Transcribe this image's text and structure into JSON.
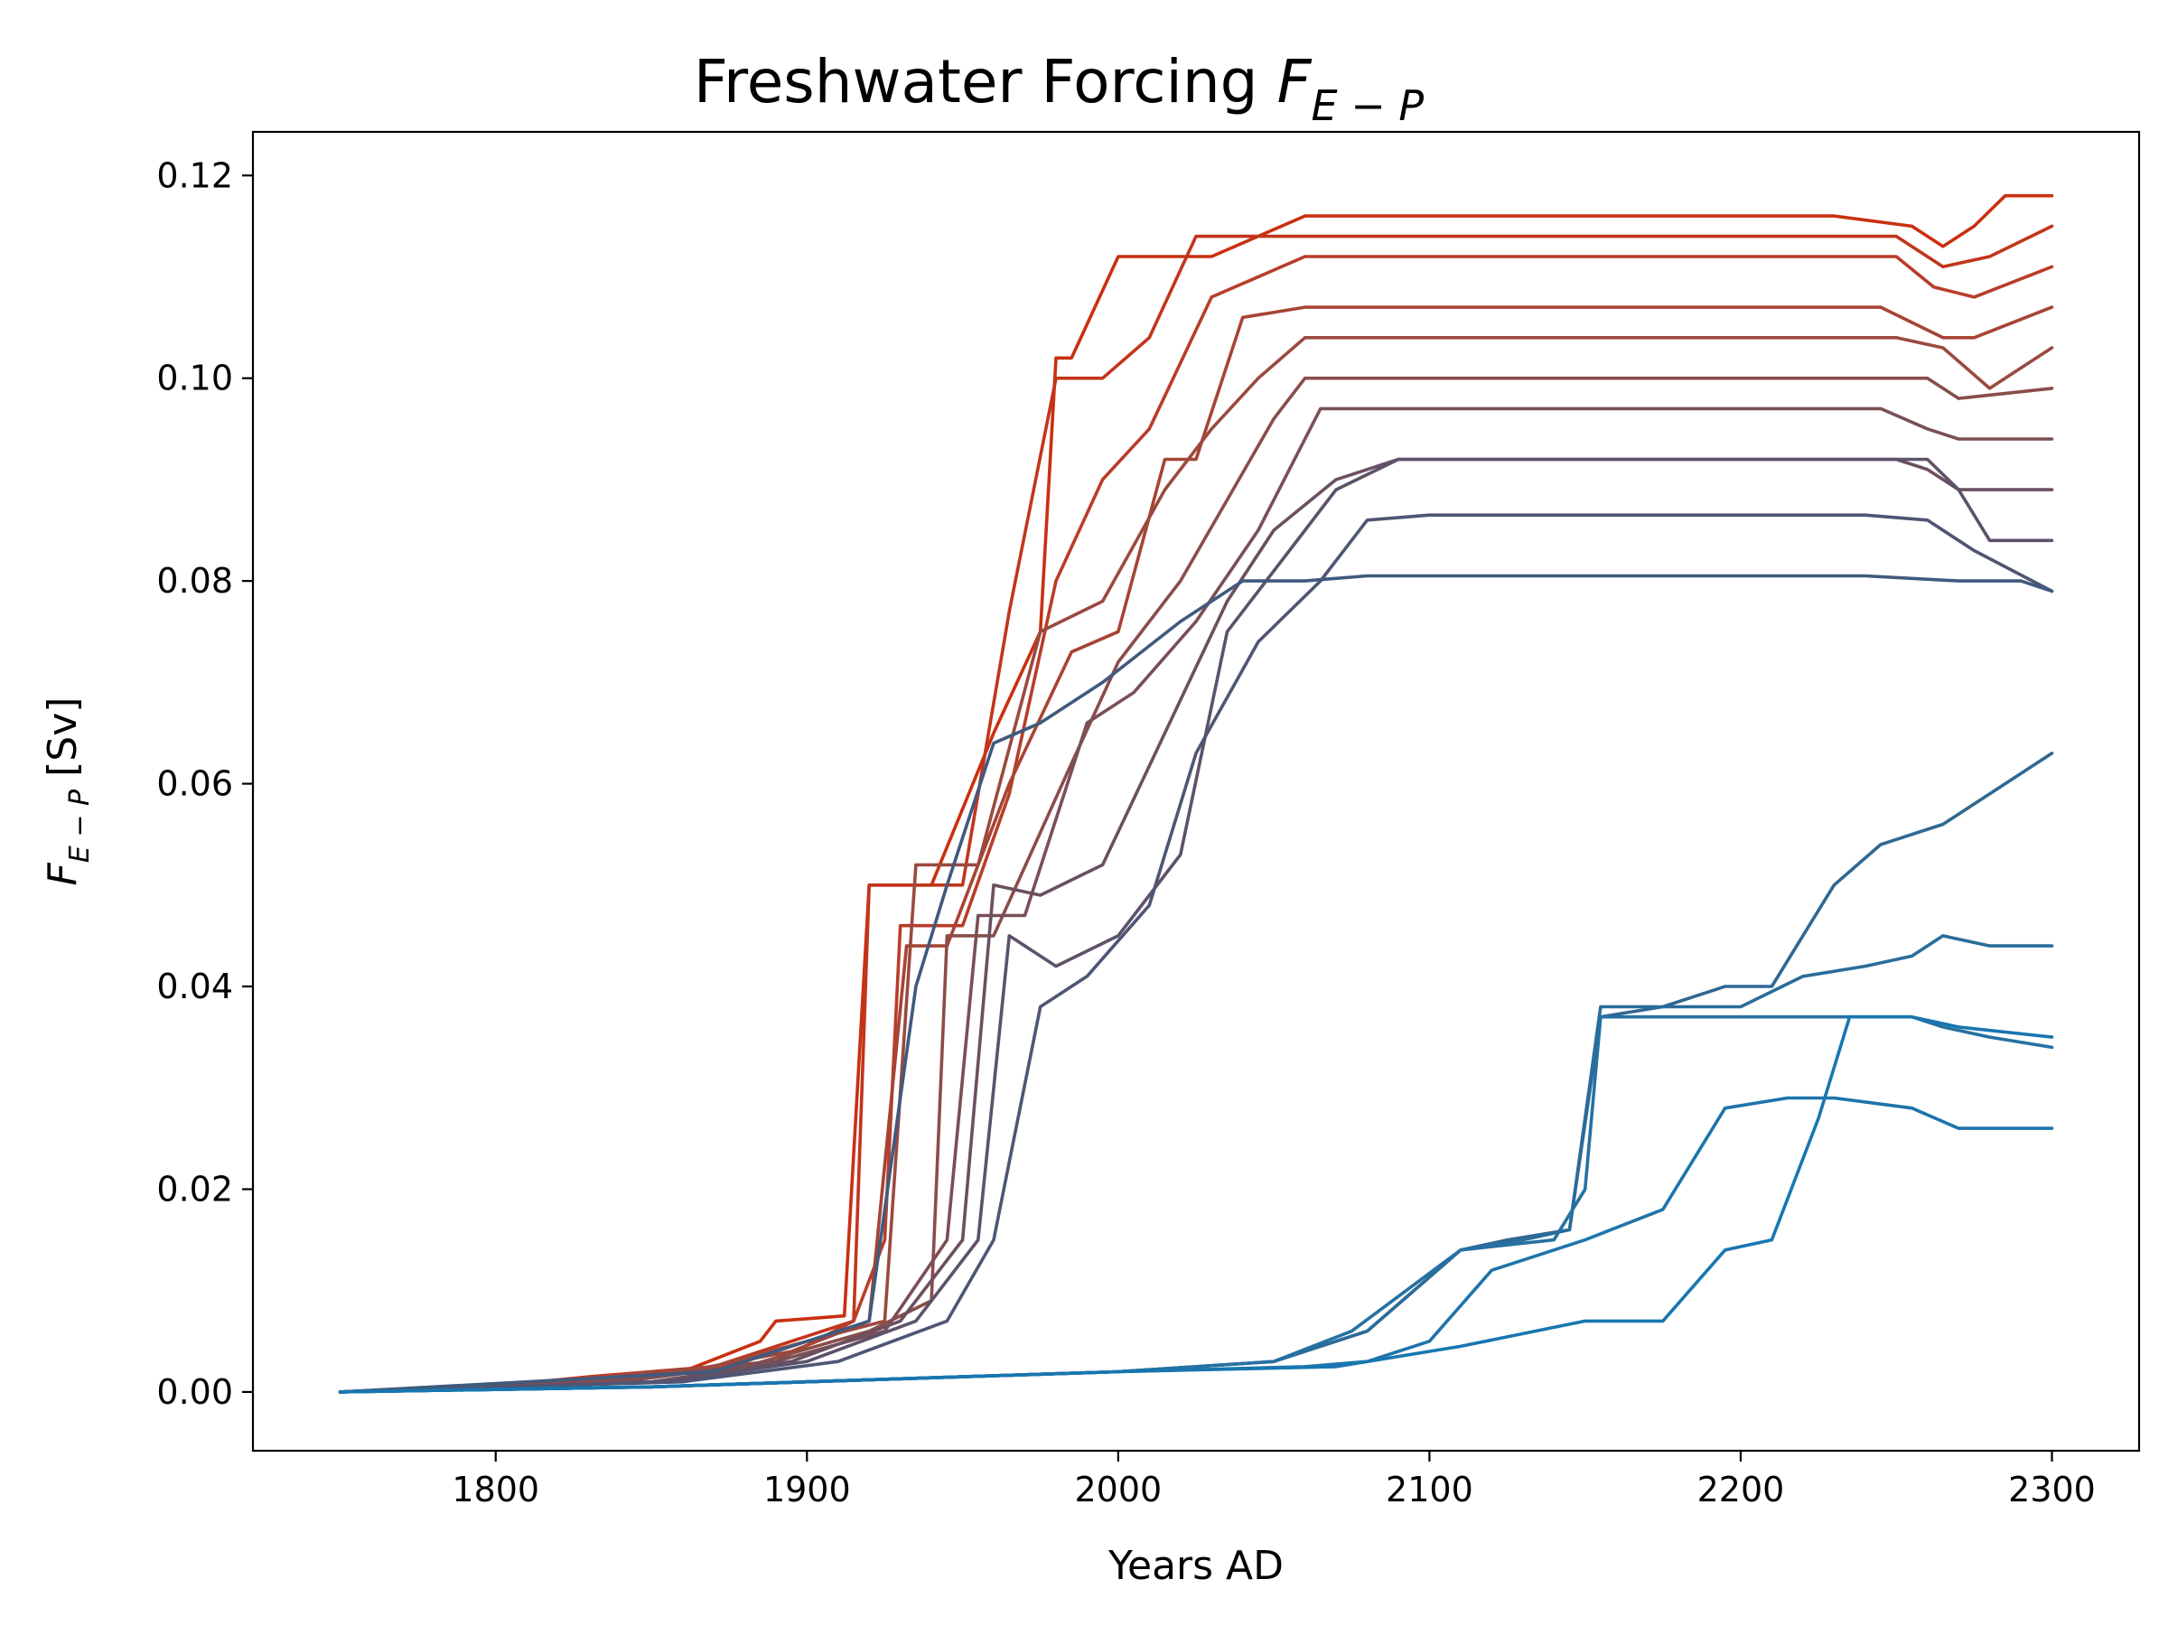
{
  "chart_data": {
    "type": "line",
    "title": {
      "main": "Freshwater Forcing ",
      "symbol": "F",
      "subscript": "E − P"
    },
    "xlabel": "Years AD",
    "ylabel": {
      "symbol": "F",
      "subscript": "E − P",
      "unit": " [Sv]"
    },
    "xlim": [
      1722,
      2328
    ],
    "ylim": [
      -0.0058,
      0.1243
    ],
    "xticks": [
      1800,
      1900,
      2000,
      2100,
      2200,
      2300
    ],
    "yticks": [
      0.0,
      0.02,
      0.04,
      0.06,
      0.08,
      0.1,
      0.12
    ],
    "xtick_labels": [
      "1800",
      "1900",
      "2000",
      "2100",
      "2200",
      "2300"
    ],
    "ytick_labels": [
      "0.00",
      "0.02",
      "0.04",
      "0.06",
      "0.08",
      "0.10",
      "0.12"
    ],
    "grid": false,
    "legend": "none",
    "series": [
      {
        "color": "#c93010",
        "x": [
          1750,
          1800,
          1820,
          1860,
          1885,
          1890,
          1912,
          1920,
          1940,
          1960,
          1975,
          1980,
          1985,
          2000,
          2030,
          2060,
          2100,
          2200,
          2230,
          2255,
          2265,
          2275,
          2285,
          2300
        ],
        "y": [
          0,
          0.0005,
          0.001,
          0.002,
          0.005,
          0.007,
          0.0075,
          0.05,
          0.05,
          0.065,
          0.075,
          0.102,
          0.102,
          0.112,
          0.112,
          0.116,
          0.116,
          0.116,
          0.116,
          0.115,
          0.113,
          0.115,
          0.118,
          0.118
        ]
      },
      {
        "color": "#c2351c",
        "x": [
          1750,
          1800,
          1830,
          1870,
          1905,
          1915,
          1920,
          1950,
          1965,
          1980,
          1995,
          2010,
          2025,
          2040,
          2070,
          2100,
          2200,
          2250,
          2265,
          2280,
          2300
        ],
        "y": [
          0,
          0.0006,
          0.0015,
          0.0025,
          0.006,
          0.007,
          0.05,
          0.05,
          0.077,
          0.1,
          0.1,
          0.104,
          0.114,
          0.114,
          0.114,
          0.114,
          0.114,
          0.114,
          0.111,
          0.112,
          0.115
        ]
      },
      {
        "color": "#b83d2a",
        "x": [
          1750,
          1810,
          1850,
          1890,
          1915,
          1925,
          1930,
          1950,
          1965,
          1980,
          1995,
          2010,
          2030,
          2060,
          2100,
          2250,
          2262,
          2275,
          2300
        ],
        "y": [
          0,
          0.0008,
          0.002,
          0.003,
          0.007,
          0.015,
          0.046,
          0.046,
          0.059,
          0.08,
          0.09,
          0.095,
          0.108,
          0.112,
          0.112,
          0.112,
          0.109,
          0.108,
          0.111
        ]
      },
      {
        "color": "#a74434",
        "x": [
          1750,
          1820,
          1860,
          1895,
          1920,
          1932,
          1945,
          1965,
          1985,
          2000,
          2015,
          2025,
          2040,
          2060,
          2100,
          2245,
          2265,
          2275,
          2300
        ],
        "y": [
          0,
          0.001,
          0.002,
          0.004,
          0.007,
          0.044,
          0.044,
          0.06,
          0.073,
          0.075,
          0.092,
          0.092,
          0.106,
          0.107,
          0.107,
          0.107,
          0.104,
          0.104,
          0.107
        ]
      },
      {
        "color": "#9a4a40",
        "x": [
          1750,
          1820,
          1870,
          1900,
          1925,
          1935,
          1955,
          1975,
          1995,
          2015,
          2030,
          2045,
          2060,
          2100,
          2250,
          2265,
          2280,
          2300
        ],
        "y": [
          0,
          0.001,
          0.0025,
          0.005,
          0.007,
          0.052,
          0.052,
          0.075,
          0.078,
          0.089,
          0.095,
          0.1,
          0.104,
          0.104,
          0.104,
          0.103,
          0.099,
          0.103
        ]
      },
      {
        "color": "#8a4d4a",
        "x": [
          1750,
          1830,
          1880,
          1920,
          1940,
          1945,
          1960,
          1985,
          2000,
          2020,
          2035,
          2050,
          2060,
          2100,
          2240,
          2260,
          2270,
          2300
        ],
        "y": [
          0,
          0.001,
          0.0025,
          0.006,
          0.009,
          0.045,
          0.045,
          0.062,
          0.072,
          0.08,
          0.088,
          0.096,
          0.1,
          0.1,
          0.1,
          0.1,
          0.098,
          0.099
        ]
      },
      {
        "color": "#7a4f56",
        "x": [
          1750,
          1840,
          1890,
          1925,
          1945,
          1955,
          1970,
          1990,
          2005,
          2025,
          2045,
          2065,
          2100,
          2245,
          2260,
          2270,
          2300
        ],
        "y": [
          0,
          0.001,
          0.003,
          0.006,
          0.015,
          0.047,
          0.047,
          0.066,
          0.069,
          0.076,
          0.085,
          0.097,
          0.097,
          0.097,
          0.095,
          0.094,
          0.094
        ]
      },
      {
        "color": "#6b5060",
        "x": [
          1750,
          1850,
          1895,
          1930,
          1950,
          1960,
          1975,
          1995,
          2015,
          2035,
          2050,
          2070,
          2090,
          2250,
          2260,
          2270,
          2300
        ],
        "y": [
          0,
          0.001,
          0.003,
          0.007,
          0.015,
          0.05,
          0.049,
          0.052,
          0.065,
          0.078,
          0.085,
          0.09,
          0.092,
          0.092,
          0.091,
          0.089,
          0.089
        ]
      },
      {
        "color": "#5d526a",
        "x": [
          1750,
          1855,
          1900,
          1935,
          1955,
          1965,
          1980,
          2000,
          2020,
          2035,
          2055,
          2070,
          2090,
          2260,
          2270,
          2280,
          2300
        ],
        "y": [
          0,
          0.001,
          0.003,
          0.007,
          0.015,
          0.045,
          0.042,
          0.045,
          0.053,
          0.075,
          0.083,
          0.089,
          0.092,
          0.092,
          0.089,
          0.084,
          0.084
        ]
      },
      {
        "color": "#4e5674",
        "x": [
          1750,
          1860,
          1910,
          1945,
          1960,
          1975,
          1990,
          2010,
          2025,
          2045,
          2065,
          2080,
          2100,
          2240,
          2260,
          2275,
          2300
        ],
        "y": [
          0,
          0.001,
          0.003,
          0.007,
          0.015,
          0.038,
          0.041,
          0.048,
          0.063,
          0.074,
          0.08,
          0.086,
          0.0865,
          0.0865,
          0.086,
          0.083,
          0.079
        ]
      },
      {
        "color": "#405a7e",
        "x": [
          1750,
          1870,
          1920,
          1935,
          1945,
          1960,
          1975,
          1995,
          2020,
          2040,
          2060,
          2080,
          2240,
          2270,
          2290,
          2300
        ],
        "y": [
          0,
          0.002,
          0.007,
          0.04,
          0.05,
          0.064,
          0.066,
          0.07,
          0.076,
          0.08,
          0.08,
          0.0805,
          0.0805,
          0.08,
          0.08,
          0.079
        ]
      },
      {
        "color": "#2f6894",
        "x": [
          1750,
          1850,
          1900,
          1950,
          2000,
          2050,
          2080,
          2110,
          2125,
          2145,
          2155,
          2175,
          2195,
          2210,
          2230,
          2245,
          2265,
          2275,
          2300
        ],
        "y": [
          0,
          0.0005,
          0.001,
          0.0015,
          0.002,
          0.003,
          0.006,
          0.014,
          0.015,
          0.016,
          0.037,
          0.038,
          0.04,
          0.04,
          0.05,
          0.054,
          0.056,
          0.058,
          0.063
        ]
      },
      {
        "color": "#2a6c9a",
        "x": [
          1750,
          1850,
          1900,
          1950,
          2000,
          2050,
          2080,
          2110,
          2130,
          2145,
          2155,
          2180,
          2200,
          2220,
          2240,
          2255,
          2265,
          2280,
          2300
        ],
        "y": [
          0,
          0.0005,
          0.001,
          0.0015,
          0.002,
          0.003,
          0.006,
          0.014,
          0.015,
          0.016,
          0.038,
          0.038,
          0.038,
          0.041,
          0.042,
          0.043,
          0.045,
          0.044,
          0.044
        ]
      },
      {
        "color": "#2571a2",
        "x": [
          1750,
          1850,
          1900,
          1950,
          2000,
          2050,
          2075,
          2110,
          2140,
          2150,
          2155,
          2185,
          2210,
          2235,
          2255,
          2265,
          2280,
          2300
        ],
        "y": [
          0,
          0.0005,
          0.001,
          0.0015,
          0.002,
          0.003,
          0.006,
          0.014,
          0.015,
          0.02,
          0.037,
          0.037,
          0.037,
          0.037,
          0.037,
          0.036,
          0.035,
          0.034
        ]
      },
      {
        "color": "#1e74aa",
        "x": [
          1750,
          1850,
          1900,
          1950,
          2000,
          2060,
          2080,
          2100,
          2120,
          2150,
          2175,
          2195,
          2215,
          2230,
          2255,
          2270,
          2300
        ],
        "y": [
          0,
          0.0005,
          0.001,
          0.0015,
          0.002,
          0.0025,
          0.003,
          0.005,
          0.012,
          0.015,
          0.018,
          0.028,
          0.029,
          0.029,
          0.028,
          0.026,
          0.026
        ]
      },
      {
        "color": "#1876b0",
        "x": [
          1750,
          1850,
          1900,
          1950,
          2000,
          2070,
          2110,
          2150,
          2175,
          2195,
          2210,
          2225,
          2235,
          2255,
          2270,
          2300
        ],
        "y": [
          0,
          0.0005,
          0.001,
          0.0015,
          0.002,
          0.0025,
          0.0045,
          0.007,
          0.007,
          0.014,
          0.015,
          0.027,
          0.037,
          0.037,
          0.036,
          0.035
        ]
      }
    ]
  }
}
